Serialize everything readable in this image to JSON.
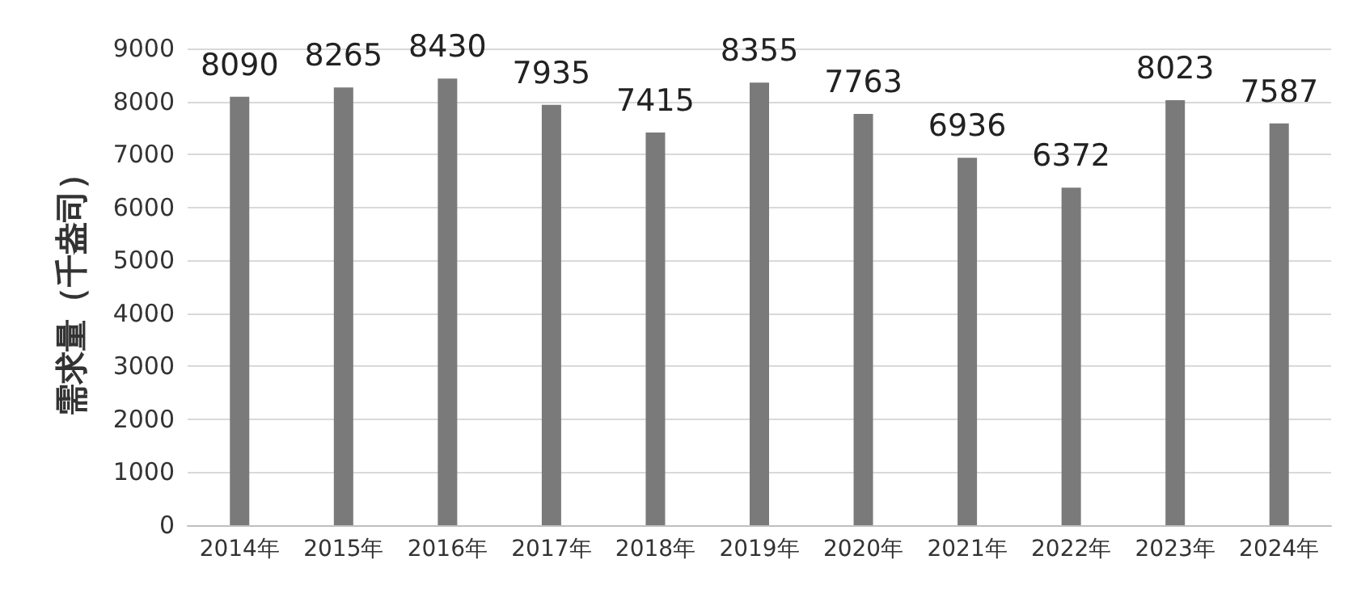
{
  "chart_data": {
    "type": "bar",
    "ylabel": "需求量（千盎司）",
    "categories": [
      "2014年",
      "2015年",
      "2016年",
      "2017年",
      "2018年",
      "2019年",
      "2020年",
      "2021年",
      "2022年",
      "2023年",
      "2024年"
    ],
    "values": [
      8090,
      8265,
      8430,
      7935,
      7415,
      8355,
      7763,
      6936,
      6372,
      8023,
      7587
    ],
    "color": "#7a7a7a",
    "ylim": [
      0,
      9000
    ],
    "yticks": [
      0,
      1000,
      2000,
      3000,
      4000,
      5000,
      6000,
      7000,
      8000,
      9000
    ],
    "grid": "y",
    "data_labels": true
  }
}
